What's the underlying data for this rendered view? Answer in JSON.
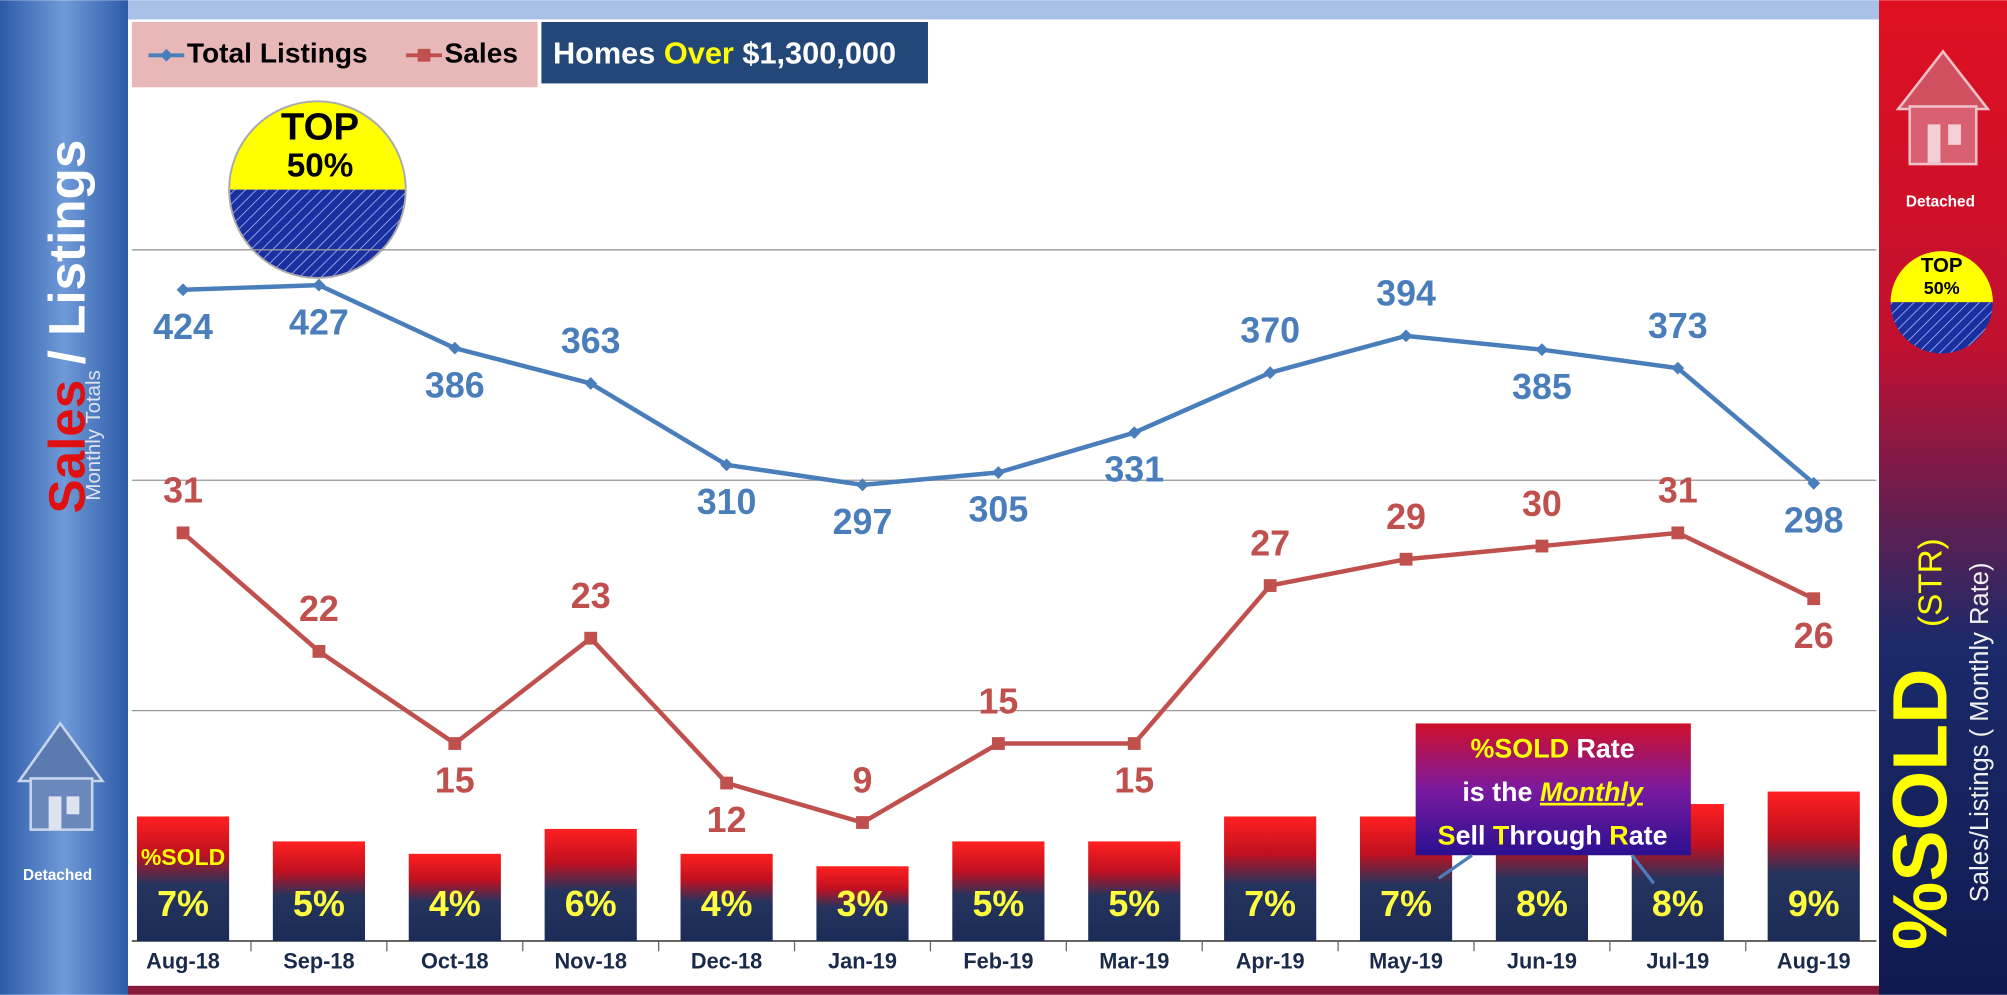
{
  "chart_data": {
    "type": "line-bar",
    "subtitle_parts": [
      "Homes",
      "Over",
      "$1,300,000"
    ],
    "categories": [
      "Aug-18",
      "Sep-18",
      "Oct-18",
      "Nov-18",
      "Dec-18",
      "Jan-19",
      "Feb-19",
      "Mar-19",
      "Apr-19",
      "May-19",
      "Jun-19",
      "Jul-19",
      "Aug-19"
    ],
    "series": [
      {
        "name": "Total Listings",
        "color": "#4a7ebb",
        "marker": "diamond",
        "values": [
          424,
          427,
          386,
          363,
          310,
          297,
          305,
          331,
          370,
          394,
          385,
          373,
          298
        ]
      },
      {
        "name": "Sales",
        "color": "#c0504d",
        "marker": "square",
        "axis": "y2",
        "values": [
          31,
          22,
          15,
          23,
          12,
          9,
          15,
          15,
          27,
          29,
          30,
          31,
          26
        ]
      },
      {
        "name": "%SOLD",
        "type": "bar",
        "axis": "y3",
        "color": "#ff1a1a",
        "values": [
          7,
          5,
          4,
          6,
          4,
          3,
          5,
          5,
          7,
          7,
          8,
          8,
          9
        ],
        "value_labels": [
          "7%",
          "5%",
          "4%",
          "6%",
          "4%",
          "3%",
          "5%",
          "5%",
          "7%",
          "7%",
          "8%",
          "8%",
          "9%"
        ]
      }
    ],
    "ylim": [
      0,
      600
    ],
    "yticks": [
      150,
      300,
      450
    ],
    "ytick_labels": false,
    "y2lim": [
      0,
      70
    ],
    "y3lim": [
      -3,
      71
    ],
    "grid": true,
    "badge": [
      "TOP",
      "50%"
    ],
    "annotation": [
      [
        "%SOLD",
        " Rate"
      ],
      [
        "is the ",
        "Monthly"
      ],
      [
        "S",
        "ell ",
        "T",
        "hrough ",
        "R",
        "ate"
      ]
    ]
  },
  "left_panel": {
    "title_parts": [
      "Sales",
      "/ Listings"
    ],
    "subtitle": "Monthly Totals",
    "house_label": "Detached"
  },
  "right_panel": {
    "house_label": "Detached",
    "badge": [
      "TOP",
      "50%"
    ],
    "title": "%SOLD",
    "title_suffix": "(STR)",
    "subtitle": "Sales/Listings ( Monthly Rate)"
  }
}
